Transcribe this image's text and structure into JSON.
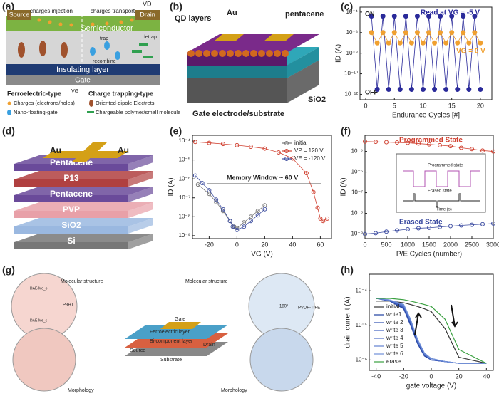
{
  "figure": {
    "a": {
      "label": "(a)",
      "source": "Source",
      "drain": "Drain",
      "vd": "VD",
      "injection": "charges injection",
      "transport": "charges transport",
      "semiconductor": "Semiconductor",
      "trap": "trap",
      "recombine": "recombine",
      "detrap": "detrap",
      "insulating": "Insulating layer",
      "gate": "Gate",
      "ferro": "Ferroelectric-type",
      "vg": "VG",
      "trapping": "Charge trapping-type",
      "charges": "Charges (electrons/holes)",
      "nfg": "Nano-floating-gate",
      "electrets": "Oriented-dipole Electrets",
      "polymer": "Chargeable polymer/small molecule"
    },
    "b": {
      "label": "(b)",
      "qd": "QD layers",
      "au": "Au",
      "pentacene": "pentacene",
      "sio2": "SiO2",
      "gate": "Gate electrode/substrate"
    },
    "d": {
      "label": "(d)",
      "au1": "Au",
      "au2": "Au",
      "layers": [
        "Pentacene",
        "P13",
        "Pentacene",
        "PVP",
        "SiO2",
        "Si"
      ]
    },
    "g": {
      "label": "(g)",
      "mol1": "Molecular structure",
      "mol2": "Molecular structure",
      "morph1": "Morphology",
      "morph2": "Morphology",
      "gate": "Gate",
      "ferro": "Ferroelectric layer",
      "bi": "Bi-component layer",
      "source": "Source",
      "drain": "Drain",
      "substrate": "Substrate",
      "pvdf": "PVDF-TrFE",
      "p3ht": "P3HT",
      "dae1": "DAE-Me_o",
      "dae2": "DAE-Me_c",
      "angle": "180°"
    }
  },
  "chart_data": [
    {
      "type": "line",
      "label": "(c)",
      "ylabel": "ID (A)",
      "xlabel": "Endurance Cycles [#]",
      "yscale": "log",
      "marker": "filled",
      "legend": "labels",
      "annotations": [
        "ON",
        "OFF"
      ],
      "x": [
        1,
        2,
        3,
        4,
        5,
        6,
        7,
        8,
        9,
        10,
        11,
        12,
        13,
        14,
        15,
        16,
        17,
        18,
        19,
        20
      ],
      "xlim": [
        -1,
        22
      ],
      "xticks": [
        0,
        5,
        10,
        15,
        20
      ],
      "ylim": [
        3e-13,
        0.0003
      ],
      "yticks": [
        {
          "value": 1e-12,
          "label": "10⁻¹²"
        },
        {
          "value": 1e-10,
          "label": "10⁻¹⁰"
        },
        {
          "value": 1e-08,
          "label": "10⁻⁸"
        },
        {
          "value": 1e-06,
          "label": "10⁻⁶"
        },
        {
          "value": 0.0001,
          "label": "10⁻⁴"
        }
      ],
      "series": [
        {
          "name": "Read at VG = -5 V",
          "color": "#2a2a9a",
          "values": [
            4e-05,
            3e-12,
            4e-05,
            3e-12,
            4e-05,
            3e-12,
            4e-05,
            3e-12,
            4e-05,
            3e-12,
            4e-05,
            3e-12,
            4e-05,
            3e-12,
            4e-05,
            3e-12,
            4e-05,
            3e-12,
            4e-05,
            3e-12
          ]
        },
        {
          "name": "VG = 0 V",
          "color": "#f0a030",
          "values": [
            1e-06,
            1e-07,
            1e-06,
            1e-07,
            1e-06,
            1e-07,
            1e-06,
            1e-07,
            1e-06,
            1e-07,
            1e-06,
            1e-07,
            1e-06,
            1e-07,
            1e-06,
            1e-07,
            1e-06,
            1e-07,
            1e-06,
            1e-07
          ]
        }
      ]
    },
    {
      "type": "line",
      "label": "(e)",
      "ylabel": "ID (A)",
      "xlabel": "VG (V)",
      "yscale": "log",
      "marker": "open",
      "legend": "upper right",
      "annotations": [
        "Memory Window ~ 60 V"
      ],
      "xlim": [
        -32,
        68
      ],
      "xticks": [
        -20,
        0,
        20,
        40,
        60
      ],
      "ylim": [
        7e-10,
        0.0002
      ],
      "yticks": [
        {
          "value": 1e-09,
          "label": "10⁻⁹"
        },
        {
          "value": 1e-08,
          "label": "10⁻⁸"
        },
        {
          "value": 1e-07,
          "label": "10⁻⁷"
        },
        {
          "value": 1e-06,
          "label": "10⁻⁶"
        },
        {
          "value": 1e-05,
          "label": "10⁻⁵"
        },
        {
          "value": 0.0001,
          "label": "10⁻⁴"
        }
      ],
      "series": [
        {
          "name": "initial",
          "color": "#777777",
          "x": [
            -28,
            -20,
            -15,
            -10,
            -5,
            -2,
            0,
            5,
            10,
            15,
            20
          ],
          "values": [
            5e-07,
            1.6e-07,
            6e-08,
            2e-08,
            6e-09,
            3e-09,
            2.5e-09,
            5e-09,
            1e-08,
            2e-08,
            4e-08
          ]
        },
        {
          "name": "VP = 120 V",
          "color": "#d04030",
          "x": [
            -30,
            -20,
            -10,
            0,
            10,
            20,
            30,
            40,
            50,
            55,
            58,
            60,
            62,
            65
          ],
          "values": [
            9e-05,
            8e-05,
            7e-05,
            6e-05,
            5e-05,
            4e-05,
            2.5e-05,
            1.2e-05,
            2e-06,
            2e-07,
            3e-08,
            8e-09,
            6e-09,
            8e-09
          ]
        },
        {
          "name": "VE = -120 V",
          "color": "#4050a0",
          "x": [
            -30,
            -25,
            -20,
            -15,
            -10,
            -5,
            -3,
            0,
            5,
            10,
            15,
            20
          ],
          "values": [
            1.5e-06,
            6e-07,
            2.5e-07,
            8e-08,
            2.5e-08,
            6e-09,
            3e-09,
            2e-09,
            3e-09,
            6e-09,
            1.2e-08,
            2.5e-08
          ]
        }
      ]
    },
    {
      "type": "line",
      "label": "(f)",
      "ylabel": "ID (A)",
      "xlabel": "P/E Cycles (number)",
      "yscale": "log",
      "marker": "open",
      "legend": "labels",
      "inset": [
        "Programmed state",
        "Erased state",
        "Time (s)"
      ],
      "x": [
        0,
        250,
        500,
        750,
        1000,
        1250,
        1500,
        1750,
        2000,
        2250,
        2500,
        2750,
        3000
      ],
      "xlim": [
        0,
        3000
      ],
      "xticks": [
        0,
        500,
        1000,
        1500,
        2000,
        2500,
        3000
      ],
      "ylim": [
        6e-10,
        6e-05
      ],
      "yticks": [
        {
          "value": 1e-09,
          "label": "10⁻⁹"
        },
        {
          "value": 1e-08,
          "label": "10⁻⁸"
        },
        {
          "value": 1e-07,
          "label": "10⁻⁷"
        },
        {
          "value": 1e-06,
          "label": "10⁻⁶"
        },
        {
          "value": 1e-05,
          "label": "10⁻⁵"
        }
      ],
      "series": [
        {
          "name": "Programmed State",
          "color": "#d04030",
          "values": [
            3e-05,
            2.9e-05,
            2.8e-05,
            2.7e-05,
            2.6e-05,
            2.4e-05,
            2.2e-05,
            2e-05,
            1.8e-05,
            1.5e-05,
            1.3e-05,
            1.1e-05,
            1e-05
          ]
        },
        {
          "name": "Erased State",
          "color": "#3a4aa0",
          "values": [
            1e-09,
            1.1e-09,
            1.3e-09,
            1.5e-09,
            1.7e-09,
            1.9e-09,
            2e-09,
            2.2e-09,
            2.4e-09,
            2.6e-09,
            2.8e-09,
            3e-09,
            3.2e-09
          ]
        }
      ]
    },
    {
      "type": "line",
      "label": "(h)",
      "ylabel": "drain current (A)",
      "xlabel": "gate voltage (V)",
      "yscale": "log",
      "marker": "none",
      "legend": "lower left",
      "x": [
        -40,
        -30,
        -20,
        -15,
        -10,
        -5,
        0,
        10,
        20,
        40
      ],
      "xlim": [
        -45,
        45
      ],
      "xticks": [
        -40,
        -20,
        0,
        20,
        40
      ],
      "ylim": [
        5e-07,
        0.0003
      ],
      "yticks": [
        {
          "value": 1e-06,
          "label": "10⁻⁶"
        },
        {
          "value": 1e-05,
          "label": "10⁻⁵"
        },
        {
          "value": 0.0001,
          "label": "10⁻⁴"
        }
      ],
      "series": [
        {
          "name": "initial",
          "color": "#333333",
          "values": [
            5e-05,
            5e-05,
            4.5e-05,
            4e-05,
            3.5e-05,
            3e-05,
            2.5e-05,
            8e-06,
            1.2e-06,
            8e-07
          ]
        },
        {
          "name": "write1",
          "color": "#1f3f9f",
          "values": [
            6e-05,
            5e-05,
            3e-05,
            1e-05,
            3e-06,
            1.3e-06,
            1e-06,
            9e-07,
            8e-07,
            8e-07
          ]
        },
        {
          "name": "write 2",
          "color": "#3050b0",
          "values": [
            6e-05,
            5e-05,
            3.2e-05,
            1.1e-05,
            3.2e-06,
            1.4e-06,
            1e-06,
            9e-07,
            8e-07,
            8e-07
          ]
        },
        {
          "name": "write 3",
          "color": "#4060c0",
          "values": [
            6e-05,
            5.2e-05,
            3.4e-05,
            1.2e-05,
            3.4e-06,
            1.4e-06,
            1e-06,
            9e-07,
            8e-07,
            8e-07
          ]
        },
        {
          "name": "write 4",
          "color": "#5070c8",
          "values": [
            6e-05,
            5.2e-05,
            3.6e-05,
            1.3e-05,
            3.6e-06,
            1.5e-06,
            1.1e-06,
            9e-07,
            8e-07,
            8e-07
          ]
        },
        {
          "name": "write 5",
          "color": "#6080d0",
          "values": [
            6e-05,
            5.4e-05,
            3.8e-05,
            1.4e-05,
            3.8e-06,
            1.5e-06,
            1.1e-06,
            9e-07,
            8e-07,
            8e-07
          ]
        },
        {
          "name": "write 6",
          "color": "#7090d8",
          "values": [
            6e-05,
            5.4e-05,
            4e-05,
            1.5e-05,
            4e-06,
            1.6e-06,
            1.1e-06,
            9e-07,
            8e-07,
            8e-07
          ]
        },
        {
          "name": "erase",
          "color": "#3aa040",
          "values": [
            6e-05,
            6e-05,
            5.5e-05,
            5e-05,
            4.5e-05,
            4e-05,
            3.5e-05,
            1.5e-05,
            2e-06,
            8e-07
          ]
        }
      ]
    }
  ]
}
